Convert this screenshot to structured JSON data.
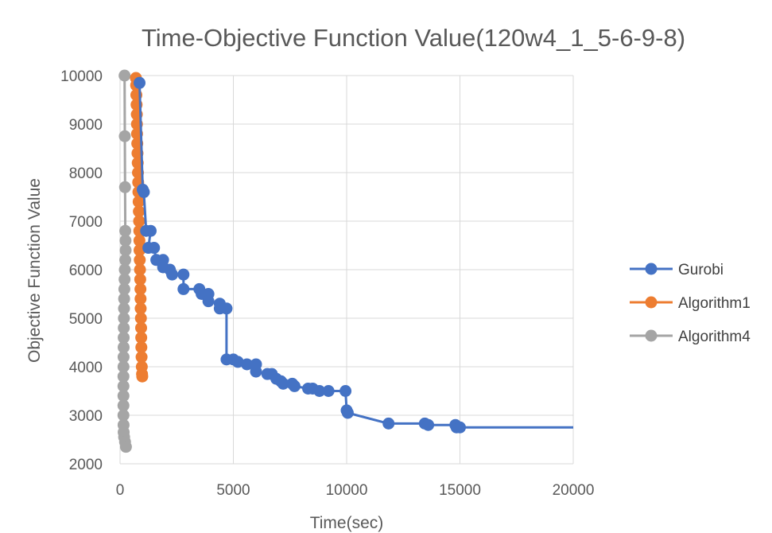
{
  "chart_data": {
    "type": "line",
    "title": "Time-Objective Function Value(120w4_1_5-6-9-8)",
    "xlabel": "Time(sec)",
    "ylabel": "Objective Function Value",
    "xlim": [
      0,
      20000
    ],
    "ylim": [
      2000,
      10000
    ],
    "x_ticks": [
      "0",
      "5000",
      "10000",
      "15000",
      "20000"
    ],
    "y_ticks": [
      "2000",
      "3000",
      "4000",
      "5000",
      "6000",
      "7000",
      "8000",
      "9000",
      "10000"
    ],
    "grid": true,
    "legend_position": "right",
    "series": [
      {
        "name": "Gurobi",
        "color": "#4472C4",
        "line_to_end": true,
        "points": [
          [
            860,
            9850
          ],
          [
            1000,
            7650
          ],
          [
            1050,
            7600
          ],
          [
            1150,
            6800
          ],
          [
            1350,
            6800
          ],
          [
            1250,
            6450
          ],
          [
            1500,
            6450
          ],
          [
            1600,
            6200
          ],
          [
            1900,
            6200
          ],
          [
            1900,
            6050
          ],
          [
            2200,
            6000
          ],
          [
            2300,
            5900
          ],
          [
            2800,
            5900
          ],
          [
            2800,
            5600
          ],
          [
            3500,
            5600
          ],
          [
            3600,
            5500
          ],
          [
            3900,
            5500
          ],
          [
            3900,
            5350
          ],
          [
            4400,
            5300
          ],
          [
            4400,
            5200
          ],
          [
            4700,
            5200
          ],
          [
            4700,
            4150
          ],
          [
            5000,
            4150
          ],
          [
            5200,
            4100
          ],
          [
            5600,
            4050
          ],
          [
            6000,
            4050
          ],
          [
            6000,
            3900
          ],
          [
            6500,
            3850
          ],
          [
            6700,
            3850
          ],
          [
            6900,
            3750
          ],
          [
            7100,
            3700
          ],
          [
            7200,
            3650
          ],
          [
            7600,
            3650
          ],
          [
            7700,
            3600
          ],
          [
            8300,
            3550
          ],
          [
            8500,
            3550
          ],
          [
            8800,
            3500
          ],
          [
            9200,
            3500
          ],
          [
            9950,
            3500
          ],
          [
            10000,
            3100
          ],
          [
            10050,
            3050
          ],
          [
            11850,
            2830
          ],
          [
            13450,
            2830
          ],
          [
            13600,
            2800
          ],
          [
            14800,
            2800
          ],
          [
            14850,
            2750
          ],
          [
            15000,
            2750
          ]
        ]
      },
      {
        "name": "Algorithm1",
        "color": "#ED7D31",
        "line_to_end": false,
        "points": [
          [
            700,
            9950
          ],
          [
            710,
            9800
          ],
          [
            720,
            9600
          ],
          [
            730,
            9400
          ],
          [
            740,
            9200
          ],
          [
            745,
            9000
          ],
          [
            750,
            8800
          ],
          [
            760,
            8600
          ],
          [
            770,
            8400
          ],
          [
            780,
            8200
          ],
          [
            790,
            8000
          ],
          [
            800,
            7800
          ],
          [
            810,
            7600
          ],
          [
            820,
            7400
          ],
          [
            830,
            7200
          ],
          [
            840,
            7000
          ],
          [
            850,
            6800
          ],
          [
            855,
            6600
          ],
          [
            860,
            6400
          ],
          [
            870,
            6200
          ],
          [
            880,
            6000
          ],
          [
            890,
            5800
          ],
          [
            900,
            5600
          ],
          [
            905,
            5400
          ],
          [
            910,
            5200
          ],
          [
            920,
            5000
          ],
          [
            930,
            4800
          ],
          [
            935,
            4600
          ],
          [
            940,
            4400
          ],
          [
            950,
            4200
          ],
          [
            960,
            4000
          ],
          [
            970,
            3850
          ],
          [
            980,
            3800
          ]
        ]
      },
      {
        "name": "Algorithm4",
        "color": "#A5A5A5",
        "line_to_end": false,
        "points": [
          [
            200,
            10000
          ],
          [
            210,
            8750
          ],
          [
            220,
            7700
          ],
          [
            230,
            6800
          ],
          [
            240,
            6600
          ],
          [
            245,
            6400
          ],
          [
            230,
            6200
          ],
          [
            210,
            6000
          ],
          [
            200,
            5800
          ],
          [
            190,
            5600
          ],
          [
            180,
            5400
          ],
          [
            175,
            5200
          ],
          [
            170,
            5000
          ],
          [
            165,
            4800
          ],
          [
            160,
            4600
          ],
          [
            158,
            4400
          ],
          [
            155,
            4200
          ],
          [
            152,
            4000
          ],
          [
            150,
            3800
          ],
          [
            150,
            3600
          ],
          [
            150,
            3400
          ],
          [
            150,
            3200
          ],
          [
            150,
            3000
          ],
          [
            155,
            2800
          ],
          [
            160,
            2650
          ],
          [
            180,
            2550
          ],
          [
            220,
            2450
          ],
          [
            260,
            2350
          ]
        ]
      }
    ]
  }
}
